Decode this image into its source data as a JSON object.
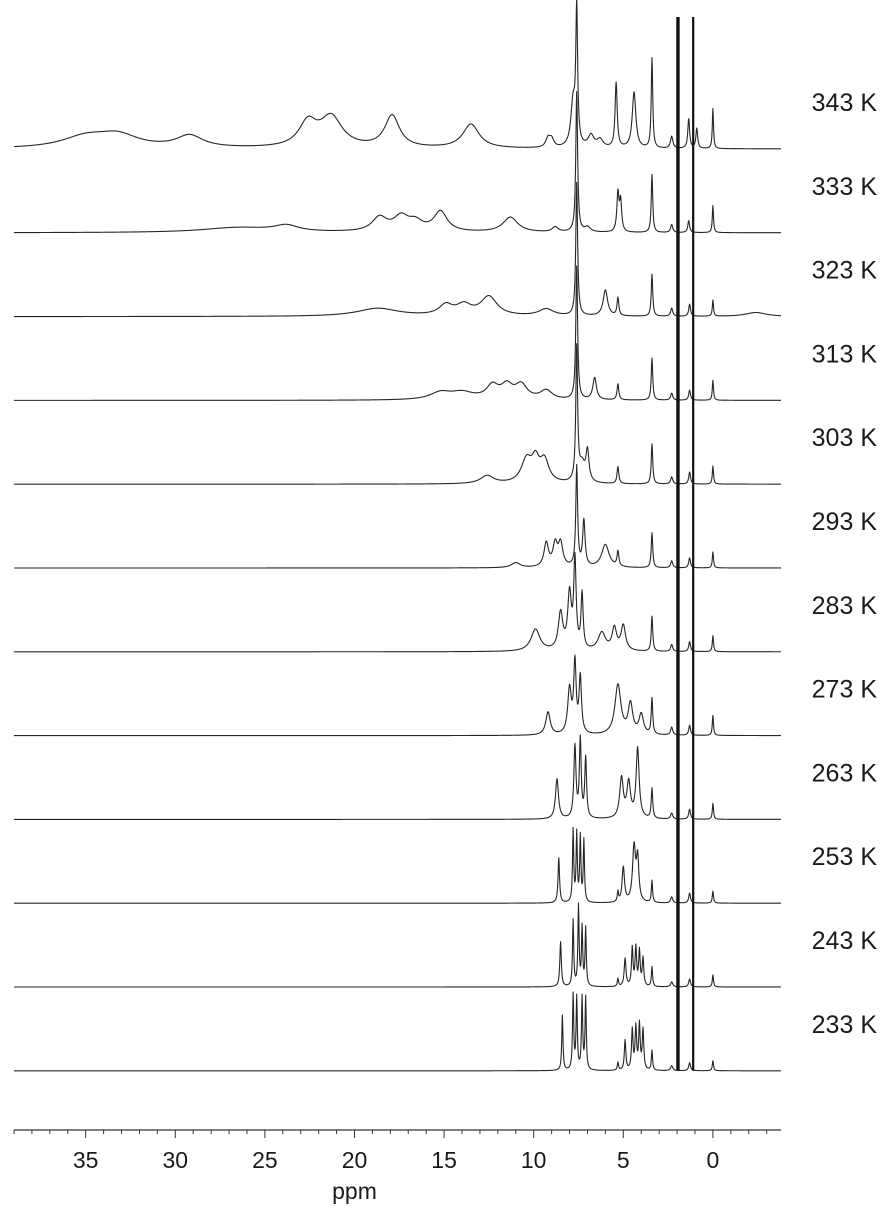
{
  "chart_data": {
    "type": "line",
    "title": "",
    "xlabel": "ppm",
    "ylabel": "",
    "x_reversed": true,
    "xlim": [
      39,
      -3.8
    ],
    "x_ticks": [
      35,
      30,
      25,
      20,
      15,
      10,
      5,
      0
    ],
    "x_tick_labels": [
      "35",
      "30",
      "25",
      "20",
      "15",
      "10",
      "5",
      "0"
    ],
    "grid": false,
    "legend": "none",
    "solvent_peaks_ppm": [
      1.95,
      1.1
    ],
    "series": [
      {
        "label": "343 K",
        "peaks": [
          {
            "x": 35.0,
            "h": 0.11,
            "w": 1.6
          },
          {
            "x": 33.2,
            "h": 0.12,
            "w": 1.4
          },
          {
            "x": 29.2,
            "h": 0.12,
            "w": 0.9
          },
          {
            "x": 22.6,
            "h": 0.24,
            "w": 0.6
          },
          {
            "x": 21.3,
            "h": 0.3,
            "w": 0.75
          },
          {
            "x": 17.9,
            "h": 0.32,
            "w": 0.5
          },
          {
            "x": 13.5,
            "h": 0.24,
            "w": 0.55
          },
          {
            "x": 9.2,
            "h": 0.09,
            "w": 0.15
          },
          {
            "x": 9.0,
            "h": 0.08,
            "w": 0.15
          },
          {
            "x": 7.8,
            "h": 0.45,
            "w": 0.15
          },
          {
            "x": 7.6,
            "h": 1.33,
            "w": 0.06
          },
          {
            "x": 6.8,
            "h": 0.12,
            "w": 0.2
          },
          {
            "x": 6.3,
            "h": 0.08,
            "w": 0.2
          },
          {
            "x": 5.4,
            "h": 0.65,
            "w": 0.07
          },
          {
            "x": 4.4,
            "h": 0.56,
            "w": 0.12
          },
          {
            "x": 3.4,
            "h": 0.9,
            "w": 0.05
          },
          {
            "x": 2.3,
            "h": 0.12,
            "w": 0.08
          },
          {
            "x": 1.35,
            "h": 0.3,
            "w": 0.06
          },
          {
            "x": 0.9,
            "h": 0.2,
            "w": 0.06
          },
          {
            "x": 0.0,
            "h": 0.4,
            "w": 0.04
          }
        ]
      },
      {
        "label": "333 K",
        "peaks": [
          {
            "x": 26.5,
            "h": 0.05,
            "w": 2.4
          },
          {
            "x": 23.8,
            "h": 0.06,
            "w": 0.8
          },
          {
            "x": 18.6,
            "h": 0.14,
            "w": 0.5
          },
          {
            "x": 17.4,
            "h": 0.14,
            "w": 0.5
          },
          {
            "x": 16.6,
            "h": 0.09,
            "w": 0.5
          },
          {
            "x": 15.2,
            "h": 0.2,
            "w": 0.45
          },
          {
            "x": 11.3,
            "h": 0.15,
            "w": 0.5
          },
          {
            "x": 8.8,
            "h": 0.05,
            "w": 0.2
          },
          {
            "x": 7.6,
            "h": 1.4,
            "w": 0.06
          },
          {
            "x": 7.0,
            "h": 0.05,
            "w": 0.2
          },
          {
            "x": 5.3,
            "h": 0.38,
            "w": 0.07
          },
          {
            "x": 5.15,
            "h": 0.3,
            "w": 0.07
          },
          {
            "x": 3.4,
            "h": 0.58,
            "w": 0.05
          },
          {
            "x": 2.3,
            "h": 0.08,
            "w": 0.07
          },
          {
            "x": 1.35,
            "h": 0.12,
            "w": 0.06
          },
          {
            "x": 0.0,
            "h": 0.27,
            "w": 0.04
          }
        ]
      },
      {
        "label": "323 K",
        "peaks": [
          {
            "x": 18.7,
            "h": 0.08,
            "w": 1.4
          },
          {
            "x": 14.9,
            "h": 0.1,
            "w": 0.45
          },
          {
            "x": 13.9,
            "h": 0.1,
            "w": 0.5
          },
          {
            "x": 12.5,
            "h": 0.19,
            "w": 0.55
          },
          {
            "x": 9.3,
            "h": 0.07,
            "w": 0.5
          },
          {
            "x": 7.6,
            "h": 1.33,
            "w": 0.06
          },
          {
            "x": 6.0,
            "h": 0.26,
            "w": 0.15
          },
          {
            "x": 5.3,
            "h": 0.18,
            "w": 0.06
          },
          {
            "x": 3.4,
            "h": 0.42,
            "w": 0.05
          },
          {
            "x": 2.3,
            "h": 0.08,
            "w": 0.07
          },
          {
            "x": 1.3,
            "h": 0.12,
            "w": 0.06
          },
          {
            "x": 0.0,
            "h": 0.16,
            "w": 0.04
          },
          {
            "x": -2.4,
            "h": 0.04,
            "w": 0.7
          }
        ]
      },
      {
        "label": "313 K",
        "peaks": [
          {
            "x": 15.2,
            "h": 0.07,
            "w": 0.7
          },
          {
            "x": 14.0,
            "h": 0.07,
            "w": 0.8
          },
          {
            "x": 12.3,
            "h": 0.13,
            "w": 0.4
          },
          {
            "x": 11.5,
            "h": 0.13,
            "w": 0.4
          },
          {
            "x": 10.7,
            "h": 0.14,
            "w": 0.4
          },
          {
            "x": 9.3,
            "h": 0.09,
            "w": 0.4
          },
          {
            "x": 7.6,
            "h": 1.33,
            "w": 0.06
          },
          {
            "x": 6.6,
            "h": 0.22,
            "w": 0.12
          },
          {
            "x": 5.3,
            "h": 0.16,
            "w": 0.06
          },
          {
            "x": 3.4,
            "h": 0.42,
            "w": 0.05
          },
          {
            "x": 2.3,
            "h": 0.07,
            "w": 0.07
          },
          {
            "x": 1.3,
            "h": 0.1,
            "w": 0.06
          },
          {
            "x": 0.0,
            "h": 0.2,
            "w": 0.04
          }
        ]
      },
      {
        "label": "303 K",
        "peaks": [
          {
            "x": 12.6,
            "h": 0.08,
            "w": 0.45
          },
          {
            "x": 10.4,
            "h": 0.23,
            "w": 0.35
          },
          {
            "x": 9.9,
            "h": 0.2,
            "w": 0.25
          },
          {
            "x": 9.4,
            "h": 0.22,
            "w": 0.3
          },
          {
            "x": 7.6,
            "h": 1.33,
            "w": 0.06
          },
          {
            "x": 7.3,
            "h": 0.18,
            "w": 0.2
          },
          {
            "x": 7.0,
            "h": 0.3,
            "w": 0.1
          },
          {
            "x": 5.3,
            "h": 0.17,
            "w": 0.06
          },
          {
            "x": 3.4,
            "h": 0.4,
            "w": 0.05
          },
          {
            "x": 2.3,
            "h": 0.07,
            "w": 0.07
          },
          {
            "x": 1.3,
            "h": 0.12,
            "w": 0.06
          },
          {
            "x": 0.0,
            "h": 0.18,
            "w": 0.04
          }
        ]
      },
      {
        "label": "293 K",
        "peaks": [
          {
            "x": 11.0,
            "h": 0.05,
            "w": 0.3
          },
          {
            "x": 9.3,
            "h": 0.24,
            "w": 0.15
          },
          {
            "x": 8.8,
            "h": 0.22,
            "w": 0.15
          },
          {
            "x": 8.5,
            "h": 0.23,
            "w": 0.15
          },
          {
            "x": 7.6,
            "h": 1.0,
            "w": 0.06
          },
          {
            "x": 7.2,
            "h": 0.46,
            "w": 0.08
          },
          {
            "x": 6.0,
            "h": 0.23,
            "w": 0.25
          },
          {
            "x": 5.3,
            "h": 0.15,
            "w": 0.06
          },
          {
            "x": 3.4,
            "h": 0.35,
            "w": 0.05
          },
          {
            "x": 2.3,
            "h": 0.07,
            "w": 0.07
          },
          {
            "x": 1.3,
            "h": 0.1,
            "w": 0.06
          },
          {
            "x": 0.0,
            "h": 0.16,
            "w": 0.04
          }
        ]
      },
      {
        "label": "283 K",
        "peaks": [
          {
            "x": 9.9,
            "h": 0.22,
            "w": 0.3
          },
          {
            "x": 8.5,
            "h": 0.37,
            "w": 0.15
          },
          {
            "x": 8.0,
            "h": 0.55,
            "w": 0.12
          },
          {
            "x": 7.7,
            "h": 0.88,
            "w": 0.08
          },
          {
            "x": 7.3,
            "h": 0.55,
            "w": 0.07
          },
          {
            "x": 6.2,
            "h": 0.18,
            "w": 0.25
          },
          {
            "x": 5.5,
            "h": 0.22,
            "w": 0.15
          },
          {
            "x": 5.0,
            "h": 0.25,
            "w": 0.15
          },
          {
            "x": 3.4,
            "h": 0.35,
            "w": 0.05
          },
          {
            "x": 2.3,
            "h": 0.07,
            "w": 0.07
          },
          {
            "x": 1.3,
            "h": 0.1,
            "w": 0.06
          },
          {
            "x": 0.0,
            "h": 0.16,
            "w": 0.04
          }
        ]
      },
      {
        "label": "273 K",
        "peaks": [
          {
            "x": 9.2,
            "h": 0.23,
            "w": 0.15
          },
          {
            "x": 8.0,
            "h": 0.45,
            "w": 0.12
          },
          {
            "x": 7.7,
            "h": 0.7,
            "w": 0.08
          },
          {
            "x": 7.4,
            "h": 0.56,
            "w": 0.08
          },
          {
            "x": 5.3,
            "h": 0.5,
            "w": 0.2
          },
          {
            "x": 4.6,
            "h": 0.3,
            "w": 0.15
          },
          {
            "x": 4.0,
            "h": 0.2,
            "w": 0.15
          },
          {
            "x": 3.4,
            "h": 0.36,
            "w": 0.05
          },
          {
            "x": 2.3,
            "h": 0.08,
            "w": 0.07
          },
          {
            "x": 1.3,
            "h": 0.1,
            "w": 0.06
          },
          {
            "x": 0.0,
            "h": 0.2,
            "w": 0.04
          }
        ]
      },
      {
        "label": "263 K",
        "peaks": [
          {
            "x": 8.7,
            "h": 0.4,
            "w": 0.1
          },
          {
            "x": 7.7,
            "h": 0.72,
            "w": 0.07
          },
          {
            "x": 7.4,
            "h": 0.78,
            "w": 0.06
          },
          {
            "x": 7.1,
            "h": 0.6,
            "w": 0.06
          },
          {
            "x": 5.1,
            "h": 0.4,
            "w": 0.12
          },
          {
            "x": 4.7,
            "h": 0.35,
            "w": 0.12
          },
          {
            "x": 4.2,
            "h": 0.7,
            "w": 0.1
          },
          {
            "x": 3.4,
            "h": 0.3,
            "w": 0.05
          },
          {
            "x": 2.3,
            "h": 0.06,
            "w": 0.07
          },
          {
            "x": 1.3,
            "h": 0.1,
            "w": 0.06
          },
          {
            "x": 0.0,
            "h": 0.16,
            "w": 0.04
          }
        ]
      },
      {
        "label": "253 K",
        "peaks": [
          {
            "x": 8.6,
            "h": 0.45,
            "w": 0.05
          },
          {
            "x": 7.8,
            "h": 0.72,
            "w": 0.04
          },
          {
            "x": 7.6,
            "h": 0.68,
            "w": 0.04
          },
          {
            "x": 7.4,
            "h": 0.65,
            "w": 0.04
          },
          {
            "x": 7.2,
            "h": 0.62,
            "w": 0.04
          },
          {
            "x": 5.3,
            "h": 0.1,
            "w": 0.04
          },
          {
            "x": 5.0,
            "h": 0.35,
            "w": 0.08
          },
          {
            "x": 4.4,
            "h": 0.55,
            "w": 0.1
          },
          {
            "x": 4.2,
            "h": 0.42,
            "w": 0.08
          },
          {
            "x": 3.4,
            "h": 0.22,
            "w": 0.04
          },
          {
            "x": 2.3,
            "h": 0.06,
            "w": 0.07
          },
          {
            "x": 1.3,
            "h": 0.1,
            "w": 0.06
          },
          {
            "x": 0.0,
            "h": 0.12,
            "w": 0.04
          }
        ]
      },
      {
        "label": "243 K",
        "peaks": [
          {
            "x": 8.5,
            "h": 0.45,
            "w": 0.05
          },
          {
            "x": 7.8,
            "h": 0.66,
            "w": 0.04
          },
          {
            "x": 7.5,
            "h": 0.8,
            "w": 0.04
          },
          {
            "x": 7.3,
            "h": 0.58,
            "w": 0.04
          },
          {
            "x": 7.1,
            "h": 0.58,
            "w": 0.04
          },
          {
            "x": 5.3,
            "h": 0.08,
            "w": 0.04
          },
          {
            "x": 4.9,
            "h": 0.28,
            "w": 0.06
          },
          {
            "x": 4.5,
            "h": 0.38,
            "w": 0.05
          },
          {
            "x": 4.3,
            "h": 0.38,
            "w": 0.05
          },
          {
            "x": 4.1,
            "h": 0.35,
            "w": 0.05
          },
          {
            "x": 3.9,
            "h": 0.28,
            "w": 0.05
          },
          {
            "x": 3.4,
            "h": 0.2,
            "w": 0.04
          },
          {
            "x": 2.3,
            "h": 0.05,
            "w": 0.07
          },
          {
            "x": 1.3,
            "h": 0.08,
            "w": 0.06
          },
          {
            "x": 0.0,
            "h": 0.12,
            "w": 0.04
          }
        ]
      },
      {
        "label": "233 K",
        "peaks": [
          {
            "x": 8.4,
            "h": 0.55,
            "w": 0.04
          },
          {
            "x": 7.8,
            "h": 0.75,
            "w": 0.04
          },
          {
            "x": 7.6,
            "h": 0.72,
            "w": 0.04
          },
          {
            "x": 7.3,
            "h": 0.72,
            "w": 0.04
          },
          {
            "x": 7.1,
            "h": 0.72,
            "w": 0.04
          },
          {
            "x": 5.3,
            "h": 0.08,
            "w": 0.04
          },
          {
            "x": 4.9,
            "h": 0.3,
            "w": 0.05
          },
          {
            "x": 4.5,
            "h": 0.4,
            "w": 0.05
          },
          {
            "x": 4.3,
            "h": 0.42,
            "w": 0.05
          },
          {
            "x": 4.1,
            "h": 0.45,
            "w": 0.05
          },
          {
            "x": 3.9,
            "h": 0.4,
            "w": 0.05
          },
          {
            "x": 3.4,
            "h": 0.2,
            "w": 0.04
          },
          {
            "x": 2.3,
            "h": 0.05,
            "w": 0.07
          },
          {
            "x": 1.3,
            "h": 0.08,
            "w": 0.06
          },
          {
            "x": 0.0,
            "h": 0.1,
            "w": 0.04
          }
        ]
      }
    ]
  }
}
